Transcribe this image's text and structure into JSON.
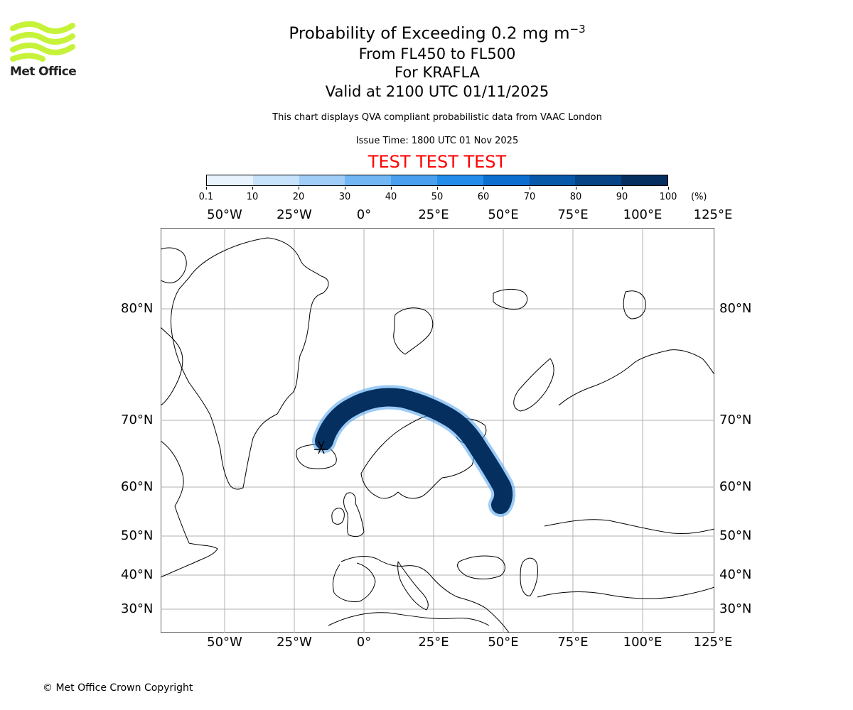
{
  "title": {
    "line1": "Probability of Exceeding 0.2 mg m",
    "line1_superscript": "−3",
    "line2": "From FL450 to FL500",
    "line3": "For KRAFLA",
    "line4": "Valid at 2100 UTC 01/11/2025"
  },
  "subtitle": "This chart displays QVA compliant probabilistic data from VAAC London",
  "issue_time": "Issue Time: 1800 UTC 01 Nov 2025",
  "test_banner": "TEST TEST TEST",
  "logo": {
    "text": "Met Office",
    "color": "#c6f23a"
  },
  "colorbar": {
    "labels": [
      "0.1",
      "10",
      "20",
      "30",
      "40",
      "50",
      "60",
      "70",
      "80",
      "90",
      "100"
    ],
    "unit": "(%)",
    "colors": [
      "#e8f3fd",
      "#c7e2fb",
      "#9fcdf7",
      "#72b6f3",
      "#4aa0ee",
      "#238be9",
      "#0c6fd0",
      "#0858aa",
      "#064485",
      "#052f5e"
    ]
  },
  "map": {
    "lon_labels": [
      "50°W",
      "25°W",
      "0°",
      "25°E",
      "50°E",
      "75°E",
      "100°E",
      "125°E"
    ],
    "lat_labels": [
      "80°N",
      "70°N",
      "60°N",
      "50°N",
      "40°N",
      "30°N"
    ],
    "plume_color": "#052f5e",
    "plume_edge_color": "#4aa0ee"
  },
  "copyright": "© Met Office Crown Copyright"
}
